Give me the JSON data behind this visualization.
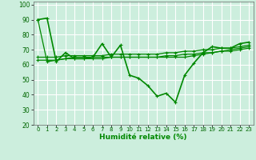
{
  "title": "",
  "xlabel": "Humidité relative (%)",
  "ylabel": "",
  "background_color": "#cceedd",
  "grid_color": "#aaddcc",
  "line_color": "#008800",
  "marker_color": "#008800",
  "xlim": [
    -0.5,
    23.5
  ],
  "ylim": [
    20,
    102
  ],
  "yticks": [
    20,
    30,
    40,
    50,
    60,
    70,
    80,
    90,
    100
  ],
  "xticks": [
    0,
    1,
    2,
    3,
    4,
    5,
    6,
    7,
    8,
    9,
    10,
    11,
    12,
    13,
    14,
    15,
    16,
    17,
    18,
    19,
    20,
    21,
    22,
    23
  ],
  "series": [
    [
      90,
      91,
      62,
      68,
      64,
      64,
      65,
      74,
      65,
      73,
      53,
      51,
      46,
      39,
      41,
      35,
      53,
      61,
      68,
      72,
      71,
      71,
      74,
      75
    ],
    [
      90,
      62,
      63,
      64,
      65,
      65,
      65,
      65,
      65,
      65,
      65,
      65,
      65,
      65,
      65,
      65,
      65,
      66,
      67,
      68,
      69,
      70,
      71,
      72
    ],
    [
      65,
      65,
      65,
      66,
      66,
      66,
      66,
      66,
      67,
      67,
      67,
      67,
      67,
      67,
      68,
      68,
      69,
      69,
      70,
      70,
      71,
      71,
      72,
      73
    ],
    [
      63,
      63,
      63,
      64,
      64,
      64,
      64,
      64,
      65,
      65,
      65,
      65,
      65,
      65,
      66,
      66,
      67,
      67,
      68,
      68,
      69,
      69,
      70,
      71
    ]
  ]
}
